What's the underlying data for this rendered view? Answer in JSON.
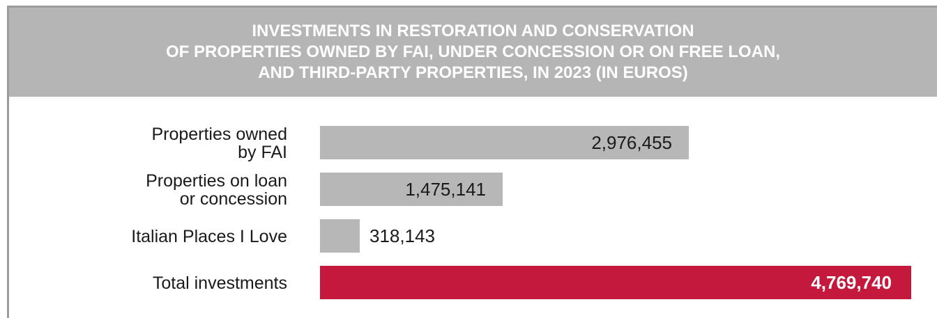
{
  "header": {
    "title_lines": [
      "INVESTMENTS IN RESTORATION AND CONSERVATION",
      "OF PROPERTIES OWNED BY FAI, UNDER CONCESSION OR ON FREE LOAN,",
      "AND THIRD-PARTY PROPERTIES, IN 2023 (IN EUROS)"
    ]
  },
  "colors": {
    "header_bg": "#b5b5b5",
    "bar_regular": "#b7b7b7",
    "bar_total": "#c4183c",
    "frame": "#9c9c9c"
  },
  "chart_data": {
    "type": "bar",
    "orientation": "horizontal",
    "title": "INVESTMENTS IN RESTORATION AND CONSERVATION OF PROPERTIES OWNED BY FAI, UNDER CONCESSION OR ON FREE LOAN, AND THIRD-PARTY PROPERTIES, IN 2023 (IN EUROS)",
    "xlim": [
      0,
      4769740
    ],
    "grid": false,
    "legend": "none",
    "bars": [
      {
        "label_lines": [
          "Properties owned",
          "by FAI"
        ],
        "value": 2976455,
        "value_label": "2,976,455",
        "highlight": false
      },
      {
        "label_lines": [
          "Properties on loan",
          "or concession"
        ],
        "value": 1475141,
        "value_label": "1,475,141",
        "highlight": false
      },
      {
        "label_lines": [
          "Italian Places I Love"
        ],
        "value": 318143,
        "value_label": "318,143",
        "highlight": false
      },
      {
        "label_lines": [
          "Total investments"
        ],
        "value": 4769740,
        "value_label": "4,769,740",
        "highlight": true
      }
    ]
  }
}
